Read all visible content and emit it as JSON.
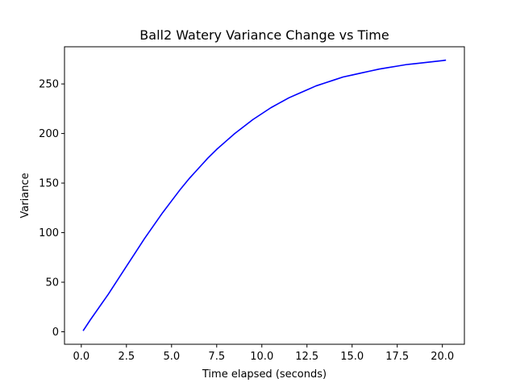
{
  "chart_data": {
    "type": "line",
    "title": "Ball2 Watery Variance Change vs Time",
    "xlabel": "Time elapsed (seconds)",
    "ylabel": "Variance",
    "xlim": [
      -0.93,
      21.22
    ],
    "ylim": [
      -12.6,
      287.5
    ],
    "xticks": [
      0,
      2.5,
      5,
      7.5,
      10,
      12.5,
      15,
      17.5,
      20
    ],
    "xtick_labels": [
      "0.0",
      "2.5",
      "5.0",
      "7.5",
      "10.0",
      "12.5",
      "15.0",
      "17.5",
      "20.0"
    ],
    "yticks": [
      0,
      50,
      100,
      150,
      200,
      250
    ],
    "ytick_labels": [
      "0",
      "50",
      "100",
      "150",
      "200",
      "250"
    ],
    "grid": false,
    "series": [
      {
        "color": "#0000ff",
        "x": [
          0.1,
          0.5,
          1.0,
          1.5,
          2.0,
          2.5,
          3.0,
          3.5,
          4.0,
          4.5,
          5.0,
          5.5,
          6.0,
          6.5,
          7.0,
          7.5,
          8.0,
          8.5,
          9.0,
          9.5,
          10.0,
          10.5,
          11.0,
          11.5,
          12.0,
          12.5,
          13.0,
          13.5,
          14.0,
          14.5,
          15.0,
          15.5,
          16.0,
          16.5,
          17.0,
          17.5,
          18.0,
          18.5,
          19.0,
          19.5,
          20.0,
          20.2
        ],
        "y": [
          1,
          12,
          25,
          38,
          52,
          66,
          80,
          94,
          107,
          120,
          132,
          144,
          155,
          165,
          175,
          184,
          192,
          200,
          207,
          214,
          220,
          226,
          231,
          236,
          240,
          244,
          248,
          251,
          254,
          257,
          259,
          261,
          263,
          265,
          266.5,
          268,
          269.5,
          270.5,
          271.5,
          272.5,
          273.5,
          274
        ]
      }
    ]
  }
}
